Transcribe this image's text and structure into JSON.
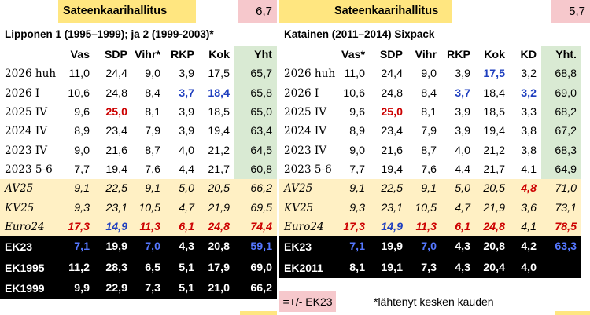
{
  "left": {
    "header_title": "Sateenkaarihallitus",
    "header_value": "6,7",
    "subtitle": "Lipponen 1 (1995–1999); ja 2 (1999-2003)*",
    "columns": [
      "",
      "Vas",
      "SDP",
      "Vihr*",
      "RKP",
      "Kok",
      "Yht"
    ],
    "rows": [
      {
        "label": "2026 huh",
        "cells": [
          "11,0",
          "24,4",
          "9,0",
          "3,9",
          "17,5",
          "65,7"
        ]
      },
      {
        "label": "2026 I",
        "cells": [
          "10,6",
          "24,8",
          "8,4",
          "3,7",
          "18,4",
          "65,8"
        ]
      },
      {
        "label": "2025 IV",
        "cells": [
          "9,6",
          "25,0",
          "8,1",
          "3,9",
          "18,5",
          "65,0"
        ]
      },
      {
        "label": "2024 IV",
        "cells": [
          "8,9",
          "23,4",
          "7,9",
          "3,9",
          "19,4",
          "63,4"
        ]
      },
      {
        "label": "2023 IV",
        "cells": [
          "9,0",
          "21,6",
          "8,7",
          "4,0",
          "21,2",
          "64,5"
        ]
      },
      {
        "label": "2023 5-6",
        "cells": [
          "7,7",
          "19,4",
          "7,6",
          "4,4",
          "21,7",
          "60,8"
        ]
      }
    ],
    "ref_rows": [
      {
        "label": "AV25",
        "cells": [
          "9,1",
          "22,5",
          "9,1",
          "5,0",
          "20,5",
          "66,2"
        ]
      },
      {
        "label": "KV25",
        "cells": [
          "9,3",
          "23,1",
          "10,5",
          "4,7",
          "21,9",
          "69,5"
        ]
      },
      {
        "label": "Euro24",
        "cells": [
          "17,3",
          "14,9",
          "11,3",
          "6,1",
          "24,8",
          "74,4"
        ]
      }
    ],
    "election_rows": [
      {
        "label": "EK23",
        "cells": [
          "7,1",
          "19,9",
          "7,0",
          "4,3",
          "20,8",
          "59,1"
        ]
      },
      {
        "label": "EK1995",
        "cells": [
          "11,2",
          "28,3",
          "6,5",
          "5,1",
          "17,9",
          "69,0"
        ]
      },
      {
        "label": "EK1999",
        "cells": [
          "9,9",
          "22,9",
          "7,3",
          "5,1",
          "21,0",
          "66,2"
        ]
      }
    ]
  },
  "right": {
    "header_title": "Sateenkaarihallitus",
    "header_value": "5,7",
    "subtitle": "Katainen (2011–2014) Sixpack",
    "columns": [
      "",
      "Vas*",
      "SDP",
      "Vihr",
      "RKP",
      "Kok",
      "KD",
      "Yht."
    ],
    "rows": [
      {
        "label": "2026 huh",
        "cells": [
          "11,0",
          "24,4",
          "9,0",
          "3,9",
          "17,5",
          "3,2",
          "68,8"
        ]
      },
      {
        "label": "2026 I",
        "cells": [
          "10,6",
          "24,8",
          "8,4",
          "3,7",
          "18,4",
          "3,2",
          "69,0"
        ]
      },
      {
        "label": "2025 IV",
        "cells": [
          "9,6",
          "25,0",
          "8,1",
          "3,9",
          "18,5",
          "3,3",
          "68,2"
        ]
      },
      {
        "label": "2024 IV",
        "cells": [
          "8,9",
          "23,4",
          "7,9",
          "3,9",
          "19,4",
          "3,8",
          "67,2"
        ]
      },
      {
        "label": "2023 IV",
        "cells": [
          "9,0",
          "21,6",
          "8,7",
          "4,0",
          "21,2",
          "3,8",
          "68,3"
        ]
      },
      {
        "label": "2023 5-6",
        "cells": [
          "7,7",
          "19,4",
          "7,6",
          "4,4",
          "21,7",
          "4,1",
          "64,9"
        ]
      }
    ],
    "ref_rows": [
      {
        "label": "AV25",
        "cells": [
          "9,1",
          "22,5",
          "9,1",
          "5,0",
          "20,5",
          "4,8",
          "71,0"
        ]
      },
      {
        "label": "KV25",
        "cells": [
          "9,3",
          "23,1",
          "10,5",
          "4,7",
          "21,9",
          "3,6",
          "73,1"
        ]
      },
      {
        "label": "Euro24",
        "cells": [
          "17,3",
          "14,9",
          "11,3",
          "6,1",
          "24,8",
          "4,1",
          "78,5"
        ]
      }
    ],
    "election_rows": [
      {
        "label": "EK23",
        "cells": [
          "7,1",
          "19,9",
          "7,0",
          "4,3",
          "20,8",
          "4,2",
          "63,3"
        ]
      },
      {
        "label": "EK2011",
        "cells": [
          "8,1",
          "19,1",
          "7,3",
          "4,3",
          "20,4",
          "4,0",
          ""
        ]
      }
    ],
    "legend": "=+/- EK23",
    "note": "*lähtenyt kesken kauden"
  },
  "colors": {
    "header_yellow": "#ffe680",
    "header_pink": "#f6c8cc",
    "total_green": "#d9ead3",
    "reference_beige": "#fff0c4",
    "election_black": "#000000",
    "highlight_red": "#cc0000",
    "highlight_blue": "#1f3fbf"
  }
}
